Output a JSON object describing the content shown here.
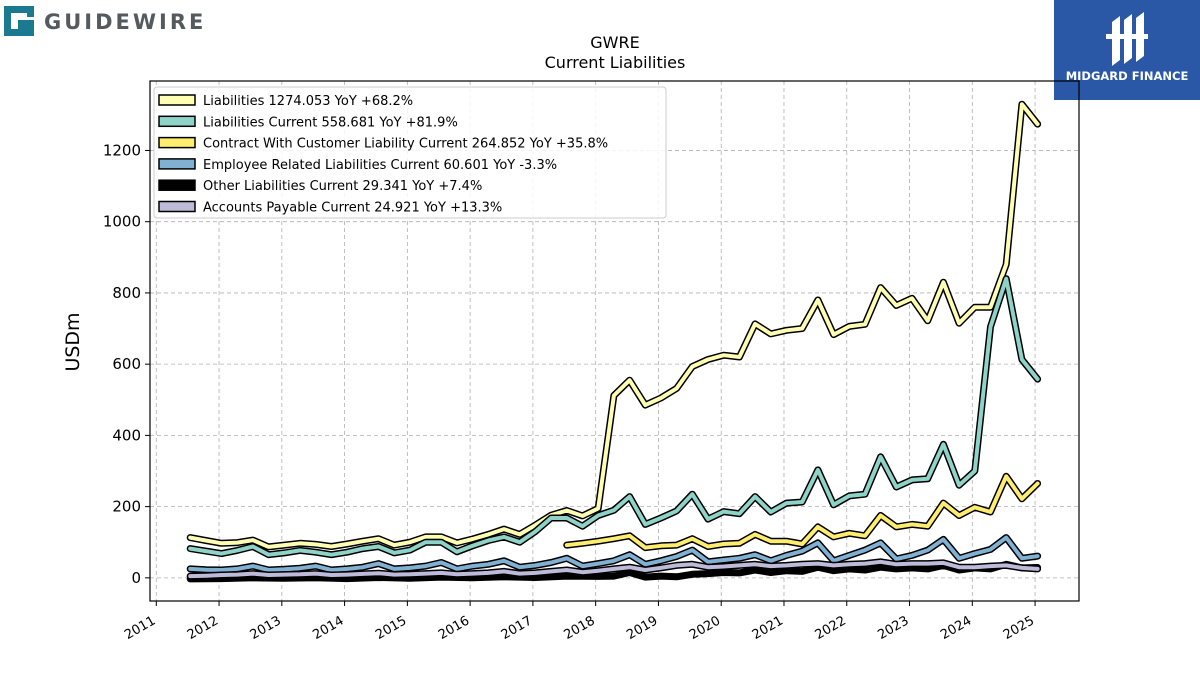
{
  "branding": {
    "left_logo_text": "GUIDEWIRE",
    "right_logo_text": "MIDGARD FINANCE",
    "left_logo_color": "#1b7a8f",
    "right_logo_bg": "#2b58a6"
  },
  "chart_data": {
    "type": "line",
    "title": "GWRE",
    "subtitle": "Current  Liabilities",
    "ylabel": "USDm",
    "xlabel": "",
    "xlim": [
      2010.9,
      2025.7
    ],
    "ylim": [
      -65,
      1395
    ],
    "yticks": [
      0,
      200,
      400,
      600,
      800,
      1000,
      1200
    ],
    "xticks": [
      2011,
      2012,
      2013,
      2014,
      2015,
      2016,
      2017,
      2018,
      2019,
      2020,
      2021,
      2022,
      2023,
      2024,
      2025
    ],
    "grid": true,
    "legend_position": "top-left",
    "series": [
      {
        "name": "Liabilities  1274.053 YoY +68.2%",
        "color": "#ffffb3",
        "x": [
          2011.54,
          2011.79,
          2012.04,
          2012.29,
          2012.54,
          2012.79,
          2013.04,
          2013.29,
          2013.54,
          2013.79,
          2014.04,
          2014.29,
          2014.54,
          2014.79,
          2015.04,
          2015.29,
          2015.54,
          2015.79,
          2016.04,
          2016.29,
          2016.54,
          2016.79,
          2017.04,
          2017.29,
          2017.54,
          2017.79,
          2018.04,
          2018.29,
          2018.54,
          2018.79,
          2019.04,
          2019.29,
          2019.54,
          2019.79,
          2020.04,
          2020.29,
          2020.54,
          2020.79,
          2021.04,
          2021.29,
          2021.54,
          2021.79,
          2022.04,
          2022.29,
          2022.54,
          2022.79,
          2023.04,
          2023.29,
          2023.54,
          2023.79,
          2024.04,
          2024.29,
          2024.54,
          2024.79,
          2025.04
        ],
        "y": [
          113,
          105,
          97,
          99,
          106,
          87,
          92,
          97,
          94,
          88,
          95,
          103,
          110,
          92,
          100,
          115,
          115,
          98,
          109,
          122,
          137,
          122,
          148,
          176,
          189,
          174,
          195,
          512,
          555,
          485,
          505,
          532,
          593,
          613,
          625,
          620,
          713,
          685,
          695,
          700,
          780,
          683,
          706,
          712,
          815,
          765,
          785,
          722,
          830,
          715,
          760,
          760,
          880,
          1330,
          1274
        ]
      },
      {
        "name": "Liabilities Current  558.681 YoY +81.9%",
        "color": "#8dd3c7",
        "x": [
          2011.54,
          2011.79,
          2012.04,
          2012.29,
          2012.54,
          2012.79,
          2013.04,
          2013.29,
          2013.54,
          2013.79,
          2014.04,
          2014.29,
          2014.54,
          2014.79,
          2015.04,
          2015.29,
          2015.54,
          2015.79,
          2016.04,
          2016.29,
          2016.54,
          2016.79,
          2017.04,
          2017.29,
          2017.54,
          2017.79,
          2018.04,
          2018.29,
          2018.54,
          2018.79,
          2019.04,
          2019.29,
          2019.54,
          2019.79,
          2020.04,
          2020.29,
          2020.54,
          2020.79,
          2021.04,
          2021.29,
          2021.54,
          2021.79,
          2022.04,
          2022.29,
          2022.54,
          2022.79,
          2023.04,
          2023.29,
          2023.54,
          2023.79,
          2024.04,
          2024.29,
          2024.54,
          2024.79,
          2025.04
        ],
        "y": [
          82,
          75,
          68,
          77,
          88,
          65,
          70,
          77,
          72,
          65,
          72,
          82,
          88,
          70,
          78,
          100,
          100,
          73,
          90,
          105,
          115,
          100,
          130,
          168,
          168,
          145,
          175,
          190,
          228,
          150,
          168,
          188,
          235,
          165,
          186,
          180,
          228,
          185,
          210,
          213,
          303,
          205,
          230,
          235,
          340,
          255,
          275,
          278,
          375,
          260,
          300,
          705,
          840,
          613,
          558
        ]
      },
      {
        "name": "Contract With Customer Liability Current  264.852 YoY +35.8%",
        "color": "#ffed6f",
        "x": [
          2017.54,
          2017.79,
          2018.04,
          2018.29,
          2018.54,
          2018.79,
          2019.04,
          2019.29,
          2019.54,
          2019.79,
          2020.04,
          2020.29,
          2020.54,
          2020.79,
          2021.04,
          2021.29,
          2021.54,
          2021.79,
          2022.04,
          2022.29,
          2022.54,
          2022.79,
          2023.04,
          2023.29,
          2023.54,
          2023.79,
          2024.04,
          2024.29,
          2024.54,
          2024.79,
          2025.04
        ],
        "y": [
          92,
          97,
          103,
          110,
          118,
          85,
          90,
          92,
          110,
          88,
          95,
          97,
          122,
          103,
          103,
          95,
          143,
          115,
          125,
          118,
          175,
          143,
          150,
          145,
          210,
          175,
          198,
          185,
          285,
          222,
          265
        ]
      },
      {
        "name": "Employee Related Liabilities Current  60.601 YoY -3.3%",
        "color": "#80b1d3",
        "x": [
          2011.54,
          2011.79,
          2012.04,
          2012.29,
          2012.54,
          2012.79,
          2013.04,
          2013.29,
          2013.54,
          2013.79,
          2014.04,
          2014.29,
          2014.54,
          2014.79,
          2015.04,
          2015.29,
          2015.54,
          2015.79,
          2016.04,
          2016.29,
          2016.54,
          2016.79,
          2017.04,
          2017.29,
          2017.54,
          2017.79,
          2018.04,
          2018.29,
          2018.54,
          2018.79,
          2019.04,
          2019.29,
          2019.54,
          2019.79,
          2020.04,
          2020.29,
          2020.54,
          2020.79,
          2021.04,
          2021.29,
          2021.54,
          2021.79,
          2022.04,
          2022.29,
          2022.54,
          2022.79,
          2023.04,
          2023.29,
          2023.54,
          2023.79,
          2024.04,
          2024.29,
          2024.54,
          2024.79,
          2025.04
        ],
        "y": [
          25,
          23,
          22,
          25,
          33,
          22,
          24,
          27,
          33,
          22,
          25,
          30,
          40,
          25,
          28,
          33,
          43,
          25,
          33,
          38,
          48,
          30,
          35,
          43,
          55,
          33,
          40,
          48,
          65,
          38,
          48,
          60,
          78,
          45,
          50,
          55,
          65,
          48,
          63,
          75,
          98,
          48,
          63,
          78,
          98,
          53,
          63,
          78,
          108,
          55,
          68,
          80,
          113,
          55,
          61
        ]
      },
      {
        "name": "Other Liabilities Current  29.341 YoY +7.4%",
        "color": "#000000",
        "x": [
          2011.54,
          2012.04,
          2012.54,
          2013.04,
          2013.54,
          2014.04,
          2014.54,
          2015.04,
          2015.54,
          2016.04,
          2016.54,
          2017.04,
          2017.54,
          2018.04,
          2018.29,
          2018.54,
          2018.79,
          2019.04,
          2019.29,
          2019.54,
          2019.79,
          2020.04,
          2020.29,
          2020.54,
          2020.79,
          2021.04,
          2021.29,
          2021.54,
          2021.79,
          2022.04,
          2022.29,
          2022.54,
          2022.79,
          2023.04,
          2023.29,
          2023.54,
          2023.79,
          2024.04,
          2024.29,
          2024.54,
          2024.79,
          2025.04
        ],
        "y": [
          -3,
          -2,
          0,
          -1,
          0,
          -2,
          1,
          -1,
          2,
          0,
          3,
          1,
          5,
          4,
          5,
          15,
          2,
          5,
          3,
          10,
          12,
          15,
          14,
          22,
          15,
          20,
          18,
          30,
          20,
          25,
          22,
          30,
          25,
          28,
          25,
          35,
          22,
          28,
          25,
          38,
          28,
          29
        ]
      },
      {
        "name": "Accounts Payable Current  24.921 YoY +13.3%",
        "color": "#bebada",
        "x": [
          2011.54,
          2011.79,
          2012.04,
          2012.29,
          2012.54,
          2012.79,
          2013.04,
          2013.29,
          2013.54,
          2013.79,
          2014.04,
          2014.29,
          2014.54,
          2014.79,
          2015.04,
          2015.29,
          2015.54,
          2015.79,
          2016.04,
          2016.29,
          2016.54,
          2016.79,
          2017.04,
          2017.29,
          2017.54,
          2017.79,
          2018.04,
          2018.29,
          2018.54,
          2018.79,
          2019.04,
          2019.29,
          2019.54,
          2019.79,
          2020.04,
          2020.29,
          2020.54,
          2020.79,
          2021.04,
          2021.29,
          2021.54,
          2021.79,
          2022.04,
          2022.29,
          2022.54,
          2022.79,
          2023.04,
          2023.29,
          2023.54,
          2023.79,
          2024.04,
          2024.29,
          2024.54,
          2024.79,
          2025.04
        ],
        "y": [
          5,
          6,
          8,
          9,
          12,
          8,
          9,
          10,
          12,
          8,
          9,
          11,
          13,
          9,
          10,
          12,
          14,
          10,
          12,
          14,
          18,
          12,
          14,
          18,
          22,
          16,
          20,
          25,
          30,
          22,
          28,
          35,
          38,
          30,
          32,
          35,
          38,
          33,
          35,
          38,
          40,
          35,
          38,
          40,
          45,
          38,
          40,
          40,
          42,
          30,
          30,
          33,
          35,
          28,
          25
        ]
      }
    ]
  }
}
